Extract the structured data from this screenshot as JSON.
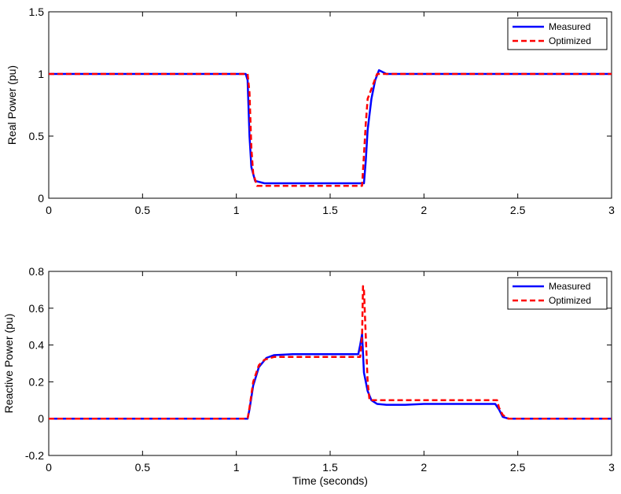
{
  "chart_data": [
    {
      "type": "line",
      "xlabel": "",
      "ylabel": "Real Power (pu)",
      "xlim": [
        0,
        3
      ],
      "ylim": [
        0,
        1.5
      ],
      "x_ticks": [
        "0",
        "0.5",
        "1",
        "1.5",
        "2",
        "2.5",
        "3"
      ],
      "y_ticks": [
        "0",
        "0.5",
        "1",
        "1.5"
      ],
      "x_tick_values": [
        0,
        0.5,
        1,
        1.5,
        2,
        2.5,
        3
      ],
      "y_tick_values": [
        0,
        0.5,
        1,
        1.5
      ],
      "grid": false,
      "legend_position": "top-right",
      "series": [
        {
          "name": "Measured",
          "color": "#0000ff",
          "style": "solid",
          "x": [
            0,
            0.2,
            0.4,
            0.6,
            0.8,
            1.0,
            1.05,
            1.06,
            1.07,
            1.08,
            1.1,
            1.15,
            1.3,
            1.5,
            1.68,
            1.69,
            1.7,
            1.72,
            1.74,
            1.76,
            1.8,
            2.0,
            2.2,
            2.4,
            2.6,
            2.8,
            3.0
          ],
          "y": [
            1.0,
            1.0,
            1.0,
            1.0,
            1.0,
            1.0,
            1.0,
            0.95,
            0.5,
            0.25,
            0.14,
            0.12,
            0.12,
            0.12,
            0.12,
            0.3,
            0.55,
            0.8,
            0.95,
            1.03,
            1.0,
            1.0,
            1.0,
            1.0,
            1.0,
            1.0,
            1.0
          ]
        },
        {
          "name": "Optimized",
          "color": "#ff0000",
          "style": "dashed",
          "x": [
            0,
            0.5,
            1.0,
            1.06,
            1.07,
            1.08,
            1.09,
            1.11,
            1.2,
            1.5,
            1.67,
            1.68,
            1.69,
            1.7,
            1.72,
            1.75,
            1.8,
            2.0,
            2.5,
            3.0
          ],
          "y": [
            1.0,
            1.0,
            1.0,
            1.0,
            0.85,
            0.4,
            0.2,
            0.1,
            0.1,
            0.1,
            0.1,
            0.35,
            0.6,
            0.8,
            0.88,
            1.0,
            1.0,
            1.0,
            1.0,
            1.0
          ]
        }
      ]
    },
    {
      "type": "line",
      "xlabel": "Time (seconds)",
      "ylabel": "Reactive Power (pu)",
      "xlim": [
        0,
        3
      ],
      "ylim": [
        -0.2,
        0.8
      ],
      "x_ticks": [
        "0",
        "0.5",
        "1",
        "1.5",
        "2",
        "2.5",
        "3"
      ],
      "y_ticks": [
        "-0.2",
        "0",
        "0.2",
        "0.4",
        "0.6",
        "0.8"
      ],
      "x_tick_values": [
        0,
        0.5,
        1,
        1.5,
        2,
        2.5,
        3
      ],
      "y_tick_values": [
        -0.2,
        0,
        0.2,
        0.4,
        0.6,
        0.8
      ],
      "grid": false,
      "legend_position": "top-right",
      "series": [
        {
          "name": "Measured",
          "color": "#0000ff",
          "style": "solid",
          "x": [
            0,
            0.5,
            1.0,
            1.06,
            1.07,
            1.09,
            1.12,
            1.16,
            1.2,
            1.3,
            1.5,
            1.6,
            1.65,
            1.66,
            1.67,
            1.68,
            1.7,
            1.72,
            1.75,
            1.8,
            1.9,
            2.0,
            2.2,
            2.38,
            2.4,
            2.42,
            2.45,
            2.6,
            2.8,
            3.0
          ],
          "y": [
            0.0,
            0.0,
            0.0,
            0.0,
            0.05,
            0.18,
            0.28,
            0.33,
            0.345,
            0.35,
            0.35,
            0.35,
            0.35,
            0.4,
            0.46,
            0.25,
            0.15,
            0.1,
            0.08,
            0.075,
            0.075,
            0.08,
            0.08,
            0.08,
            0.05,
            0.01,
            0.0,
            0.0,
            0.0,
            0.0
          ]
        },
        {
          "name": "Optimized",
          "color": "#ff0000",
          "style": "dashed",
          "x": [
            0,
            0.5,
            1.0,
            1.06,
            1.07,
            1.09,
            1.12,
            1.15,
            1.2,
            1.3,
            1.5,
            1.66,
            1.67,
            1.675,
            1.68,
            1.69,
            1.7,
            1.71,
            1.73,
            1.8,
            2.0,
            2.2,
            2.39,
            2.4,
            2.42,
            2.45,
            2.6,
            3.0
          ],
          "y": [
            0.0,
            0.0,
            0.0,
            0.0,
            0.06,
            0.2,
            0.29,
            0.32,
            0.335,
            0.335,
            0.335,
            0.335,
            0.45,
            0.72,
            0.7,
            0.45,
            0.2,
            0.1,
            0.1,
            0.1,
            0.1,
            0.1,
            0.1,
            0.06,
            0.02,
            0.0,
            0.0,
            0.0
          ]
        }
      ]
    }
  ]
}
